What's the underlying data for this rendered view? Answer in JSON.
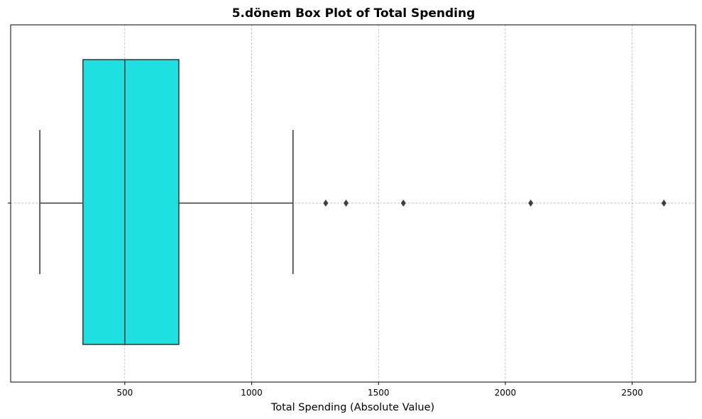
{
  "chart_data": {
    "type": "box",
    "title": "5.dönem Box Plot of Total Spending",
    "xlabel": "Total Spending (Absolute Value)",
    "ylabel": "",
    "orientation": "horizontal",
    "xlim": [
      50,
      2750
    ],
    "xticks": [
      500,
      1000,
      1500,
      2000,
      2500
    ],
    "grid": true,
    "box": {
      "whisker_low": 165,
      "q1": 335,
      "median": 500,
      "q3": 713,
      "whisker_high": 1163,
      "outliers": [
        1292,
        1372,
        1598,
        2100,
        2625
      ]
    },
    "colors": {
      "box_fill": "#1fe0e0",
      "box_edge": "#3f3f3f",
      "grid": "#b0b0b0"
    }
  }
}
